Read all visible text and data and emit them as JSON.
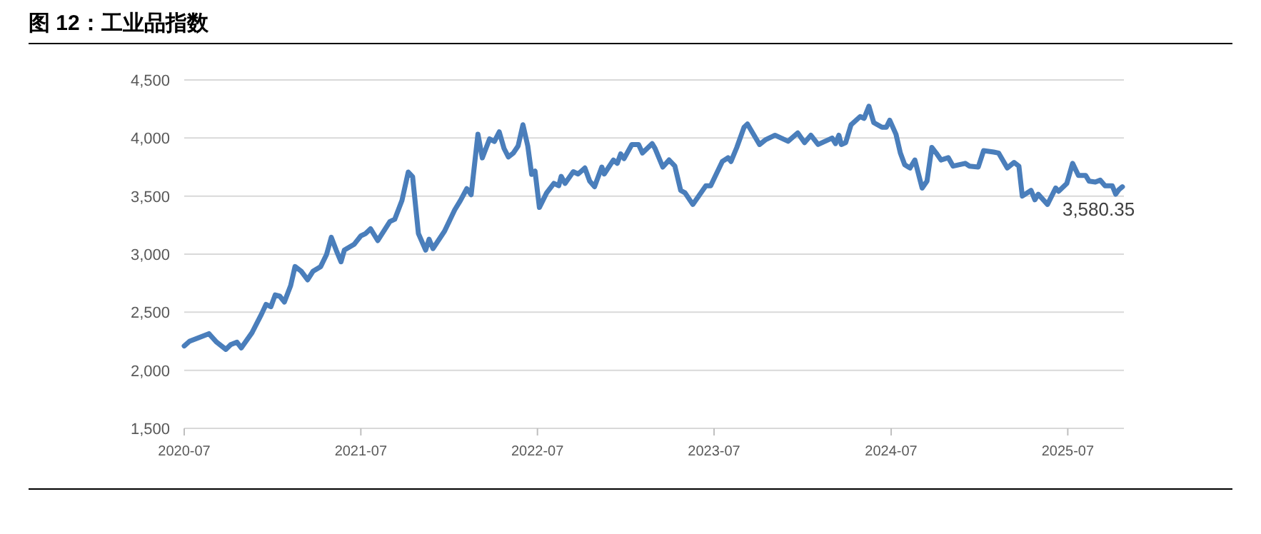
{
  "chart_data": {
    "type": "line",
    "title": "图 12：工业品指数",
    "x": [
      "2020-07-01",
      "2020-07-12",
      "2020-08-21",
      "2020-09-06",
      "2020-09-25",
      "2020-10-05",
      "2020-10-18",
      "2020-10-27",
      "2020-11-18",
      "2020-12-08",
      "2020-12-17",
      "2020-12-27",
      "2021-01-05",
      "2021-01-14",
      "2021-01-24",
      "2021-02-06",
      "2021-02-15",
      "2021-02-28",
      "2021-03-13",
      "2021-03-24",
      "2021-04-09",
      "2021-04-21",
      "2021-05-01",
      "2021-05-11",
      "2021-05-21",
      "2021-05-28",
      "2021-06-17",
      "2021-07-01",
      "2021-07-11",
      "2021-07-21",
      "2021-08-05",
      "2021-08-30",
      "2021-09-09",
      "2021-09-24",
      "2021-10-07",
      "2021-10-16",
      "2021-10-28",
      "2021-11-12",
      "2021-11-19",
      "2021-11-27",
      "2021-12-21",
      "2022-01-11",
      "2022-01-23",
      "2022-02-05",
      "2022-02-14",
      "2022-02-28",
      "2022-03-09",
      "2022-03-24",
      "2022-04-03",
      "2022-04-13",
      "2022-04-23",
      "2022-05-02",
      "2022-05-12",
      "2022-05-22",
      "2022-06-01",
      "2022-06-11",
      "2022-06-19",
      "2022-06-26",
      "2022-07-05",
      "2022-07-20",
      "2022-08-04",
      "2022-08-14",
      "2022-08-19",
      "2022-08-27",
      "2022-09-13",
      "2022-09-23",
      "2022-10-07",
      "2022-10-17",
      "2022-10-27",
      "2022-11-11",
      "2022-11-16",
      "2022-12-05",
      "2022-12-13",
      "2022-12-20",
      "2022-12-27",
      "2023-01-12",
      "2023-01-26",
      "2023-02-03",
      "2023-02-23",
      "2023-03-01",
      "2023-03-17",
      "2023-03-30",
      "2023-04-11",
      "2023-04-23",
      "2023-05-02",
      "2023-05-18",
      "2023-06-14",
      "2023-06-24",
      "2023-07-18",
      "2023-07-30",
      "2023-08-05",
      "2023-08-17",
      "2023-09-01",
      "2023-09-08",
      "2023-10-03",
      "2023-10-15",
      "2023-11-04",
      "2023-12-01",
      "2023-12-21",
      "2024-01-04",
      "2024-01-17",
      "2024-02-01",
      "2024-03-01",
      "2024-03-08",
      "2024-03-15",
      "2024-03-20",
      "2024-03-29",
      "2024-04-09",
      "2024-04-28",
      "2024-05-06",
      "2024-05-16",
      "2024-05-26",
      "2024-06-12",
      "2024-06-21",
      "2024-06-28",
      "2024-07-11",
      "2024-07-20",
      "2024-07-29",
      "2024-08-09",
      "2024-08-19",
      "2024-09-03",
      "2024-09-13",
      "2024-09-23",
      "2024-10-02",
      "2024-10-12",
      "2024-10-27",
      "2024-11-06",
      "2024-12-01",
      "2024-12-10",
      "2024-12-28",
      "2025-01-08",
      "2025-01-29",
      "2025-02-08",
      "2025-02-26",
      "2025-03-12",
      "2025-03-22",
      "2025-03-29",
      "2025-04-16",
      "2025-04-24",
      "2025-05-01",
      "2025-05-20",
      "2025-06-06",
      "2025-06-12",
      "2025-06-29",
      "2025-07-11",
      "2025-07-23",
      "2025-08-07",
      "2025-08-14",
      "2025-08-27",
      "2025-09-06",
      "2025-09-16",
      "2025-10-01",
      "2025-10-08",
      "2025-10-15",
      "2025-10-22"
    ],
    "series": [
      {
        "color": "#4a7ebb",
        "values": [
          2209,
          2250,
          2315,
          2242,
          2180,
          2221,
          2242,
          2193,
          2323,
          2486,
          2567,
          2547,
          2649,
          2640,
          2588,
          2730,
          2893,
          2852,
          2779,
          2852,
          2893,
          2995,
          3145,
          3035,
          2934,
          3035,
          3084,
          3158,
          3178,
          3219,
          3117,
          3280,
          3300,
          3463,
          3707,
          3666,
          3178,
          3035,
          3129,
          3048,
          3198,
          3381,
          3463,
          3564,
          3512,
          4033,
          3829,
          3992,
          3971,
          4053,
          3910,
          3837,
          3870,
          3931,
          4114,
          3931,
          3687,
          3715,
          3402,
          3528,
          3609,
          3589,
          3670,
          3609,
          3710,
          3690,
          3742,
          3629,
          3581,
          3750,
          3690,
          3811,
          3782,
          3863,
          3823,
          3944,
          3944,
          3871,
          3952,
          3911,
          3750,
          3811,
          3758,
          3549,
          3528,
          3428,
          3589,
          3589,
          3798,
          3831,
          3798,
          3919,
          4093,
          4121,
          3944,
          3984,
          4024,
          3972,
          4044,
          3960,
          4024,
          3944,
          4000,
          3952,
          4024,
          3944,
          3960,
          4113,
          4185,
          4169,
          4274,
          4133,
          4093,
          4093,
          4153,
          4032,
          3871,
          3770,
          3742,
          3811,
          3569,
          3629,
          3919,
          3871,
          3811,
          3831,
          3758,
          3782,
          3758,
          3750,
          3891,
          3879,
          3871,
          3742,
          3790,
          3758,
          3500,
          3549,
          3468,
          3516,
          3428,
          3569,
          3541,
          3609,
          3782,
          3678,
          3678,
          3629,
          3621,
          3637,
          3589,
          3589,
          3516,
          3557,
          3580.35
        ]
      }
    ],
    "annotations": [
      {
        "text": "3,580.35",
        "x": "2025-10-22",
        "y": 3580.35
      }
    ],
    "xlim": [
      "2020-07-01",
      "2025-10-25"
    ],
    "xticks": [
      "2020-07",
      "2021-07",
      "2022-07",
      "2023-07",
      "2024-07",
      "2025-07"
    ],
    "ylim": [
      1500,
      4500
    ],
    "yticks": [
      {
        "value": 1500,
        "label": "1,500"
      },
      {
        "value": 2000,
        "label": "2,000"
      },
      {
        "value": 2500,
        "label": "2,500"
      },
      {
        "value": 3000,
        "label": "3,000"
      },
      {
        "value": 3500,
        "label": "3,500"
      },
      {
        "value": 4000,
        "label": "4,000"
      },
      {
        "value": 4500,
        "label": "4,500"
      }
    ],
    "grid": "y",
    "line_style": "solid"
  }
}
